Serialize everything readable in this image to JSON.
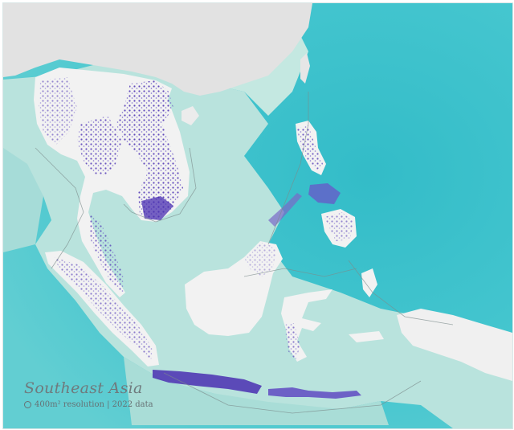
{
  "map": {
    "title": "Southeast Asia",
    "subtitle": "400m² resolution | 2022 data",
    "legend_symbol": "resolution-circle-icon"
  },
  "colors": {
    "ocean_deep": "#3cc3cc",
    "ocean_shelf": "#b9e3dd",
    "land": "#f2f2f2",
    "china_land": "#e2e2e2",
    "population": "#4a2fb2",
    "border": "#7c8c8c"
  }
}
